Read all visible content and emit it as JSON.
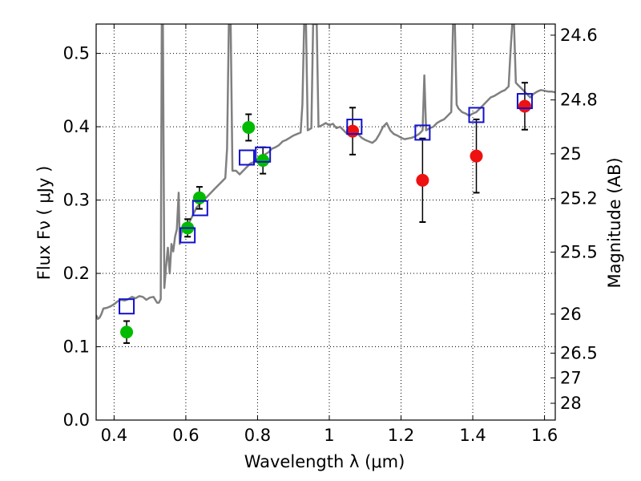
{
  "chart_data": {
    "type": "scatter",
    "xlabel": "Wavelength  λ (μm)",
    "ylabel": "Flux  Fν  ( μJy )",
    "y2label": "Magnitude (AB)",
    "xlim": [
      0.35,
      1.63
    ],
    "ylim": [
      0.0,
      0.54
    ],
    "xticks": [
      {
        "value": 0.4,
        "label": "0.4"
      },
      {
        "value": 0.6,
        "label": "0.6"
      },
      {
        "value": 0.8,
        "label": "0.8"
      },
      {
        "value": 1.0,
        "label": "1"
      },
      {
        "value": 1.2,
        "label": "1.2"
      },
      {
        "value": 1.4,
        "label": "1.4"
      },
      {
        "value": 1.6,
        "label": "1.6"
      }
    ],
    "yticks": [
      {
        "value": 0.0,
        "label": "0.0"
      },
      {
        "value": 0.1,
        "label": "0.1"
      },
      {
        "value": 0.2,
        "label": "0.2"
      },
      {
        "value": 0.3,
        "label": "0.3"
      },
      {
        "value": 0.4,
        "label": "0.4"
      },
      {
        "value": 0.5,
        "label": "0.5"
      }
    ],
    "magnitude_ticks": [
      {
        "mag": 24.6,
        "label": "24.6"
      },
      {
        "mag": 24.8,
        "label": "24.8"
      },
      {
        "mag": 25.0,
        "label": "25"
      },
      {
        "mag": 25.2,
        "label": "25.2"
      },
      {
        "mag": 25.5,
        "label": "25.5"
      },
      {
        "mag": 26.0,
        "label": "26"
      },
      {
        "mag": 26.5,
        "label": "26.5"
      },
      {
        "mag": 27.0,
        "label": "27"
      },
      {
        "mag": 28.0,
        "label": "28"
      }
    ],
    "grid": true,
    "grid_style": "dotted",
    "colors": {
      "model_spectrum": "#808080",
      "optical_points": "#00bb00",
      "nir_points": "#ee1111",
      "model_squares": "#1111cc",
      "error_bars": "#000000"
    },
    "model_spectrum": [
      [
        0.35,
        0.143
      ],
      [
        0.355,
        0.138
      ],
      [
        0.36,
        0.14
      ],
      [
        0.365,
        0.145
      ],
      [
        0.37,
        0.152
      ],
      [
        0.38,
        0.153
      ],
      [
        0.39,
        0.155
      ],
      [
        0.4,
        0.158
      ],
      [
        0.41,
        0.162
      ],
      [
        0.42,
        0.164
      ],
      [
        0.43,
        0.163
      ],
      [
        0.44,
        0.165
      ],
      [
        0.45,
        0.168
      ],
      [
        0.46,
        0.166
      ],
      [
        0.47,
        0.169
      ],
      [
        0.48,
        0.168
      ],
      [
        0.49,
        0.164
      ],
      [
        0.5,
        0.167
      ],
      [
        0.51,
        0.168
      ],
      [
        0.52,
        0.16
      ],
      [
        0.525,
        0.16
      ],
      [
        0.53,
        0.165
      ],
      [
        0.533,
        0.54
      ],
      [
        0.536,
        0.54
      ],
      [
        0.54,
        0.18
      ],
      [
        0.545,
        0.21
      ],
      [
        0.55,
        0.235
      ],
      [
        0.555,
        0.2
      ],
      [
        0.56,
        0.24
      ],
      [
        0.565,
        0.23
      ],
      [
        0.57,
        0.25
      ],
      [
        0.575,
        0.26
      ],
      [
        0.58,
        0.31
      ],
      [
        0.583,
        0.24
      ],
      [
        0.586,
        0.25
      ],
      [
        0.59,
        0.26
      ],
      [
        0.6,
        0.265
      ],
      [
        0.61,
        0.27
      ],
      [
        0.62,
        0.28
      ],
      [
        0.63,
        0.29
      ],
      [
        0.64,
        0.295
      ],
      [
        0.65,
        0.3
      ],
      [
        0.66,
        0.305
      ],
      [
        0.67,
        0.31
      ],
      [
        0.68,
        0.315
      ],
      [
        0.69,
        0.32
      ],
      [
        0.7,
        0.325
      ],
      [
        0.71,
        0.33
      ],
      [
        0.715,
        0.37
      ],
      [
        0.72,
        0.54
      ],
      [
        0.725,
        0.54
      ],
      [
        0.73,
        0.34
      ],
      [
        0.74,
        0.34
      ],
      [
        0.75,
        0.335
      ],
      [
        0.76,
        0.34
      ],
      [
        0.77,
        0.345
      ],
      [
        0.78,
        0.35
      ],
      [
        0.79,
        0.352
      ],
      [
        0.8,
        0.355
      ],
      [
        0.81,
        0.36
      ],
      [
        0.82,
        0.362
      ],
      [
        0.83,
        0.365
      ],
      [
        0.84,
        0.37
      ],
      [
        0.85,
        0.372
      ],
      [
        0.86,
        0.375
      ],
      [
        0.87,
        0.38
      ],
      [
        0.88,
        0.382
      ],
      [
        0.89,
        0.385
      ],
      [
        0.9,
        0.388
      ],
      [
        0.91,
        0.39
      ],
      [
        0.92,
        0.392
      ],
      [
        0.925,
        0.43
      ],
      [
        0.93,
        0.54
      ],
      [
        0.935,
        0.54
      ],
      [
        0.94,
        0.395
      ],
      [
        0.95,
        0.398
      ],
      [
        0.955,
        0.54
      ],
      [
        0.96,
        0.54
      ],
      [
        0.965,
        0.54
      ],
      [
        0.97,
        0.4
      ],
      [
        0.98,
        0.402
      ],
      [
        0.99,
        0.405
      ],
      [
        1.0,
        0.402
      ],
      [
        1.01,
        0.404
      ],
      [
        1.02,
        0.398
      ],
      [
        1.03,
        0.4
      ],
      [
        1.04,
        0.395
      ],
      [
        1.05,
        0.39
      ],
      [
        1.06,
        0.392
      ],
      [
        1.07,
        0.395
      ],
      [
        1.08,
        0.39
      ],
      [
        1.09,
        0.385
      ],
      [
        1.1,
        0.382
      ],
      [
        1.11,
        0.38
      ],
      [
        1.12,
        0.378
      ],
      [
        1.13,
        0.382
      ],
      [
        1.14,
        0.39
      ],
      [
        1.15,
        0.4
      ],
      [
        1.16,
        0.405
      ],
      [
        1.17,
        0.395
      ],
      [
        1.18,
        0.39
      ],
      [
        1.19,
        0.388
      ],
      [
        1.2,
        0.385
      ],
      [
        1.21,
        0.383
      ],
      [
        1.22,
        0.384
      ],
      [
        1.23,
        0.385
      ],
      [
        1.24,
        0.387
      ],
      [
        1.25,
        0.39
      ],
      [
        1.26,
        0.395
      ],
      [
        1.265,
        0.47
      ],
      [
        1.27,
        0.395
      ],
      [
        1.28,
        0.398
      ],
      [
        1.29,
        0.4
      ],
      [
        1.3,
        0.405
      ],
      [
        1.31,
        0.408
      ],
      [
        1.32,
        0.41
      ],
      [
        1.33,
        0.415
      ],
      [
        1.34,
        0.42
      ],
      [
        1.345,
        0.54
      ],
      [
        1.35,
        0.54
      ],
      [
        1.355,
        0.43
      ],
      [
        1.36,
        0.425
      ],
      [
        1.37,
        0.42
      ],
      [
        1.38,
        0.418
      ],
      [
        1.39,
        0.415
      ],
      [
        1.4,
        0.418
      ],
      [
        1.41,
        0.42
      ],
      [
        1.42,
        0.425
      ],
      [
        1.43,
        0.43
      ],
      [
        1.44,
        0.435
      ],
      [
        1.45,
        0.44
      ],
      [
        1.46,
        0.442
      ],
      [
        1.47,
        0.445
      ],
      [
        1.48,
        0.448
      ],
      [
        1.49,
        0.45
      ],
      [
        1.5,
        0.455
      ],
      [
        1.505,
        0.5
      ],
      [
        1.51,
        0.54
      ],
      [
        1.515,
        0.54
      ],
      [
        1.52,
        0.46
      ],
      [
        1.53,
        0.455
      ],
      [
        1.54,
        0.45
      ],
      [
        1.55,
        0.445
      ],
      [
        1.56,
        0.44
      ],
      [
        1.57,
        0.445
      ],
      [
        1.58,
        0.448
      ],
      [
        1.59,
        0.45
      ],
      [
        1.6,
        0.449
      ],
      [
        1.61,
        0.448
      ],
      [
        1.62,
        0.448
      ],
      [
        1.63,
        0.447
      ]
    ],
    "series": [
      {
        "marker": "circle",
        "color": "#00bb00",
        "points": [
          {
            "x": 0.435,
            "y": 0.12,
            "err": 0.015
          },
          {
            "x": 0.605,
            "y": 0.262,
            "err": 0.012
          },
          {
            "x": 0.638,
            "y": 0.303,
            "err": 0.015
          },
          {
            "x": 0.775,
            "y": 0.399,
            "err": 0.018
          },
          {
            "x": 0.815,
            "y": 0.354,
            "err": 0.018
          }
        ]
      },
      {
        "marker": "circle",
        "color": "#ee1111",
        "points": [
          {
            "x": 1.065,
            "y": 0.394,
            "err": 0.032
          },
          {
            "x": 1.26,
            "y": 0.327,
            "err": 0.057
          },
          {
            "x": 1.41,
            "y": 0.36,
            "err": 0.05
          },
          {
            "x": 1.545,
            "y": 0.428,
            "err": 0.032
          }
        ]
      },
      {
        "marker": "square",
        "color": "#1111cc",
        "points": [
          {
            "x": 0.435,
            "y": 0.155
          },
          {
            "x": 0.605,
            "y": 0.252
          },
          {
            "x": 0.64,
            "y": 0.289
          },
          {
            "x": 0.77,
            "y": 0.358
          },
          {
            "x": 0.815,
            "y": 0.362
          },
          {
            "x": 1.07,
            "y": 0.4
          },
          {
            "x": 1.26,
            "y": 0.392
          },
          {
            "x": 1.41,
            "y": 0.416
          },
          {
            "x": 1.545,
            "y": 0.435
          }
        ]
      }
    ]
  }
}
